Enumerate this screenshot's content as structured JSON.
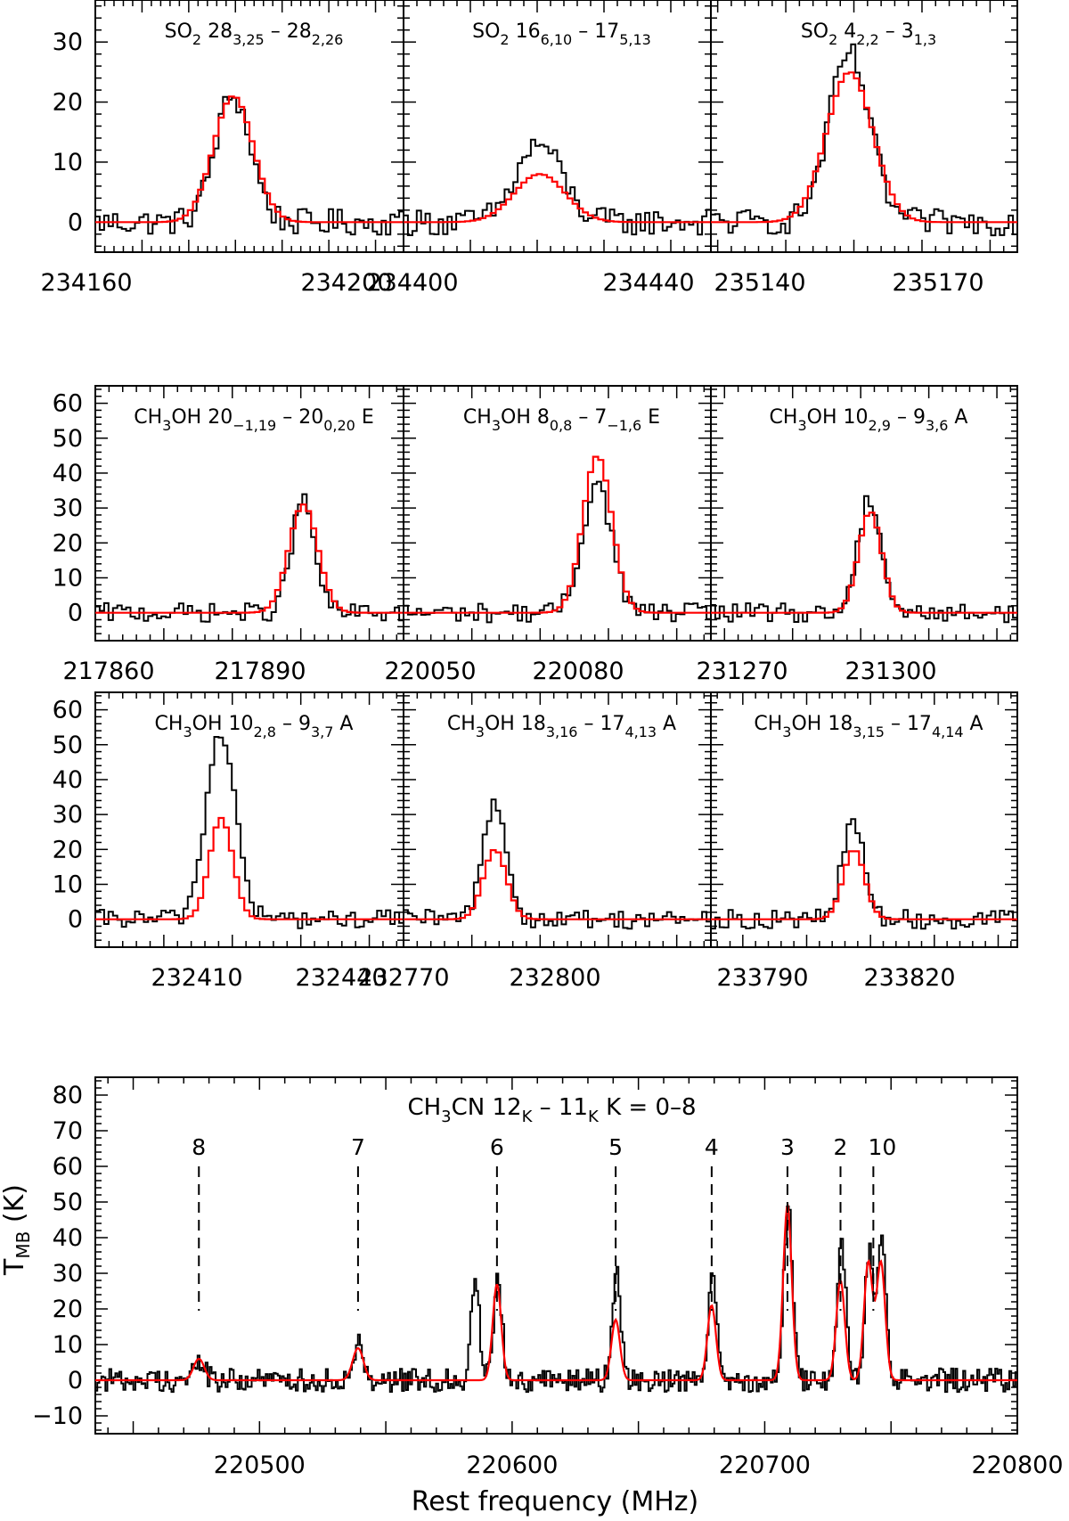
{
  "colors": {
    "observed": "#000000",
    "model": "#ff0000",
    "background": "#ffffff"
  },
  "figure": {
    "xlabel": "Rest frequency (MHz)",
    "ylabel": "T",
    "ylabel_sub": "MB",
    "ylabel_unit": " (K)"
  },
  "chart_data": [
    {
      "id": "so2-1",
      "type": "line",
      "molecule": "SO",
      "mol_sub": "2",
      "transition": [
        [
          "28",
          ""
        ],
        [
          "3,25",
          "sub"
        ],
        [
          " – 28",
          ""
        ],
        [
          "2,26",
          "sub"
        ]
      ],
      "x_ticks": [
        "234160",
        "234200"
      ],
      "y_ticks": [
        "0",
        "10",
        "20",
        "30"
      ],
      "xlim": [
        234160,
        234226
      ],
      "ylim": [
        -5,
        37
      ],
      "line_center": 234189,
      "observed_peak": 21,
      "model_peak": 21,
      "observed_width_mhz": 9,
      "model_width_mhz": 10
    },
    {
      "id": "so2-2",
      "type": "line",
      "molecule": "SO",
      "mol_sub": "2",
      "transition": [
        [
          "16",
          ""
        ],
        [
          "6,10",
          "sub"
        ],
        [
          " – 17",
          ""
        ],
        [
          "5,13",
          "sub"
        ]
      ],
      "x_ticks": [
        "234400",
        "234440"
      ],
      "y_ticks": [],
      "xlim": [
        234400,
        234446
      ],
      "ylim": [
        -5,
        37
      ],
      "line_center": 234420,
      "observed_peak": 13,
      "model_peak": 8,
      "observed_width_mhz": 8,
      "model_width_mhz": 9
    },
    {
      "id": "so2-3",
      "type": "line",
      "molecule": "SO",
      "mol_sub": "2",
      "transition": [
        [
          "4",
          ""
        ],
        [
          "2,2",
          "sub"
        ],
        [
          " – 3",
          ""
        ],
        [
          "1,3",
          "sub"
        ]
      ],
      "x_ticks": [
        "235140",
        "235170"
      ],
      "y_ticks": [],
      "xlim": [
        235129,
        235174
      ],
      "ylim": [
        -5,
        37
      ],
      "line_center": 235149,
      "observed_peak": 28,
      "model_peak": 25,
      "observed_width_mhz": 7,
      "model_width_mhz": 8
    },
    {
      "id": "ch3oh-1",
      "type": "line",
      "molecule": "CH",
      "mol_sub": "3",
      "mol_tail": "OH",
      "transition": [
        [
          "20",
          ""
        ],
        [
          "−1,19",
          "sub"
        ],
        [
          " – 20",
          ""
        ],
        [
          "0,20",
          "sub"
        ],
        [
          " E",
          ""
        ]
      ],
      "x_ticks": [
        "217860",
        "217890"
      ],
      "y_ticks": [
        "0",
        "10",
        "20",
        "30",
        "40",
        "50",
        "60"
      ],
      "xlim": [
        217860,
        217905
      ],
      "ylim": [
        -8,
        65
      ],
      "line_center": 217890,
      "observed_peak": 32,
      "model_peak": 31,
      "observed_width_mhz": 4,
      "model_width_mhz": 5
    },
    {
      "id": "ch3oh-2",
      "type": "line",
      "molecule": "CH",
      "mol_sub": "3",
      "mol_tail": "OH",
      "transition": [
        [
          "8",
          ""
        ],
        [
          "0,8",
          "sub"
        ],
        [
          " – 7",
          ""
        ],
        [
          "−1,6",
          "sub"
        ],
        [
          " E",
          ""
        ]
      ],
      "x_ticks": [
        "220050",
        "220080"
      ],
      "y_ticks": [],
      "xlim": [
        220050,
        220095
      ],
      "ylim": [
        -8,
        65
      ],
      "line_center": 220078,
      "observed_peak": 37,
      "model_peak": 45,
      "observed_width_mhz": 5,
      "model_width_mhz": 5
    },
    {
      "id": "ch3oh-3",
      "type": "line",
      "molecule": "CH",
      "mol_sub": "3",
      "mol_tail": "OH",
      "transition": [
        [
          "10",
          ""
        ],
        [
          "2,9",
          "sub"
        ],
        [
          " – 9",
          ""
        ],
        [
          "3,6",
          "sub"
        ],
        [
          " A",
          ""
        ]
      ],
      "x_ticks": [
        "231270",
        "231300"
      ],
      "y_ticks": [],
      "xlim": [
        231258,
        231303
      ],
      "ylim": [
        -8,
        65
      ],
      "line_center": 231281,
      "observed_peak": 33,
      "model_peak": 29,
      "observed_width_mhz": 4,
      "model_width_mhz": 4
    },
    {
      "id": "ch3oh-4",
      "type": "line",
      "molecule": "CH",
      "mol_sub": "3",
      "mol_tail": "OH",
      "transition": [
        [
          "10",
          ""
        ],
        [
          "2,8",
          "sub"
        ],
        [
          " – 9",
          ""
        ],
        [
          "3,7",
          "sub"
        ],
        [
          " A",
          ""
        ]
      ],
      "x_ticks": [
        "232410",
        "232440"
      ],
      "y_ticks": [
        "0",
        "10",
        "20",
        "30",
        "40",
        "50",
        "60"
      ],
      "xlim": [
        232400,
        232445
      ],
      "ylim": [
        -8,
        65
      ],
      "line_center": 232418,
      "observed_peak": 54,
      "model_peak": 29,
      "observed_width_mhz": 5,
      "model_width_mhz": 4
    },
    {
      "id": "ch3oh-5",
      "type": "line",
      "molecule": "CH",
      "mol_sub": "3",
      "mol_tail": "OH",
      "transition": [
        [
          "18",
          ""
        ],
        [
          "3,16",
          "sub"
        ],
        [
          " – 17",
          ""
        ],
        [
          "4,13",
          "sub"
        ],
        [
          " A",
          ""
        ]
      ],
      "x_ticks": [
        "232770",
        "232800"
      ],
      "y_ticks": [],
      "xlim": [
        232770,
        232815
      ],
      "ylim": [
        -8,
        65
      ],
      "line_center": 232783,
      "observed_peak": 34,
      "model_peak": 20,
      "observed_width_mhz": 4,
      "model_width_mhz": 4
    },
    {
      "id": "ch3oh-6",
      "type": "line",
      "molecule": "CH",
      "mol_sub": "3",
      "mol_tail": "OH",
      "transition": [
        [
          "18",
          ""
        ],
        [
          "3,15",
          "sub"
        ],
        [
          " – 17",
          ""
        ],
        [
          "4,14",
          "sub"
        ],
        [
          " A",
          ""
        ]
      ],
      "x_ticks": [
        "233790",
        "233820"
      ],
      "y_ticks": [],
      "xlim": [
        233775,
        233823
      ],
      "ylim": [
        -8,
        65
      ],
      "line_center": 233797,
      "observed_peak": 28,
      "model_peak": 20,
      "observed_width_mhz": 4,
      "model_width_mhz": 4
    },
    {
      "id": "ch3cn",
      "type": "line",
      "molecule": "CH",
      "mol_sub": "3",
      "mol_tail": "CN",
      "title_parts": [
        [
          "12",
          ""
        ],
        [
          "K",
          "sub"
        ],
        [
          " – 11",
          ""
        ],
        [
          "K",
          "sub"
        ],
        [
          "  K = 0–8",
          ""
        ]
      ],
      "x_ticks": [
        "220500",
        "220600",
        "220700",
        "220800"
      ],
      "y_ticks": [
        "−10",
        "0",
        "10",
        "20",
        "30",
        "40",
        "50",
        "60",
        "70",
        "80"
      ],
      "xlim": [
        220435,
        220800
      ],
      "ylim": [
        -15,
        85
      ],
      "k_markers": [
        {
          "label": "8",
          "x": 220476
        },
        {
          "label": "7",
          "x": 220539
        },
        {
          "label": "6",
          "x": 220594
        },
        {
          "label": "5",
          "x": 220641
        },
        {
          "label": "4",
          "x": 220679
        },
        {
          "label": "3",
          "x": 220709
        },
        {
          "label": "2",
          "x": 220730
        },
        {
          "label": "10",
          "x": 220743
        }
      ],
      "components": [
        {
          "x": 220476,
          "observed": 5,
          "model": 6,
          "width_mhz": 5
        },
        {
          "x": 220539,
          "observed": 10,
          "model": 9,
          "width_mhz": 5
        },
        {
          "x": 220585,
          "observed": 28,
          "model": 0,
          "width_mhz": 4
        },
        {
          "x": 220594,
          "observed": 28,
          "model": 27,
          "width_mhz": 4
        },
        {
          "x": 220641,
          "observed": 30,
          "model": 17,
          "width_mhz": 4
        },
        {
          "x": 220679,
          "observed": 31,
          "model": 21,
          "width_mhz": 4
        },
        {
          "x": 220709,
          "observed": 50,
          "model": 49,
          "width_mhz": 4
        },
        {
          "x": 220730,
          "observed": 39,
          "model": 28,
          "width_mhz": 4
        },
        {
          "x": 220741,
          "observed": 36,
          "model": 33,
          "width_mhz": 4
        },
        {
          "x": 220746,
          "observed": 41,
          "model": 33,
          "width_mhz": 4
        }
      ]
    }
  ]
}
